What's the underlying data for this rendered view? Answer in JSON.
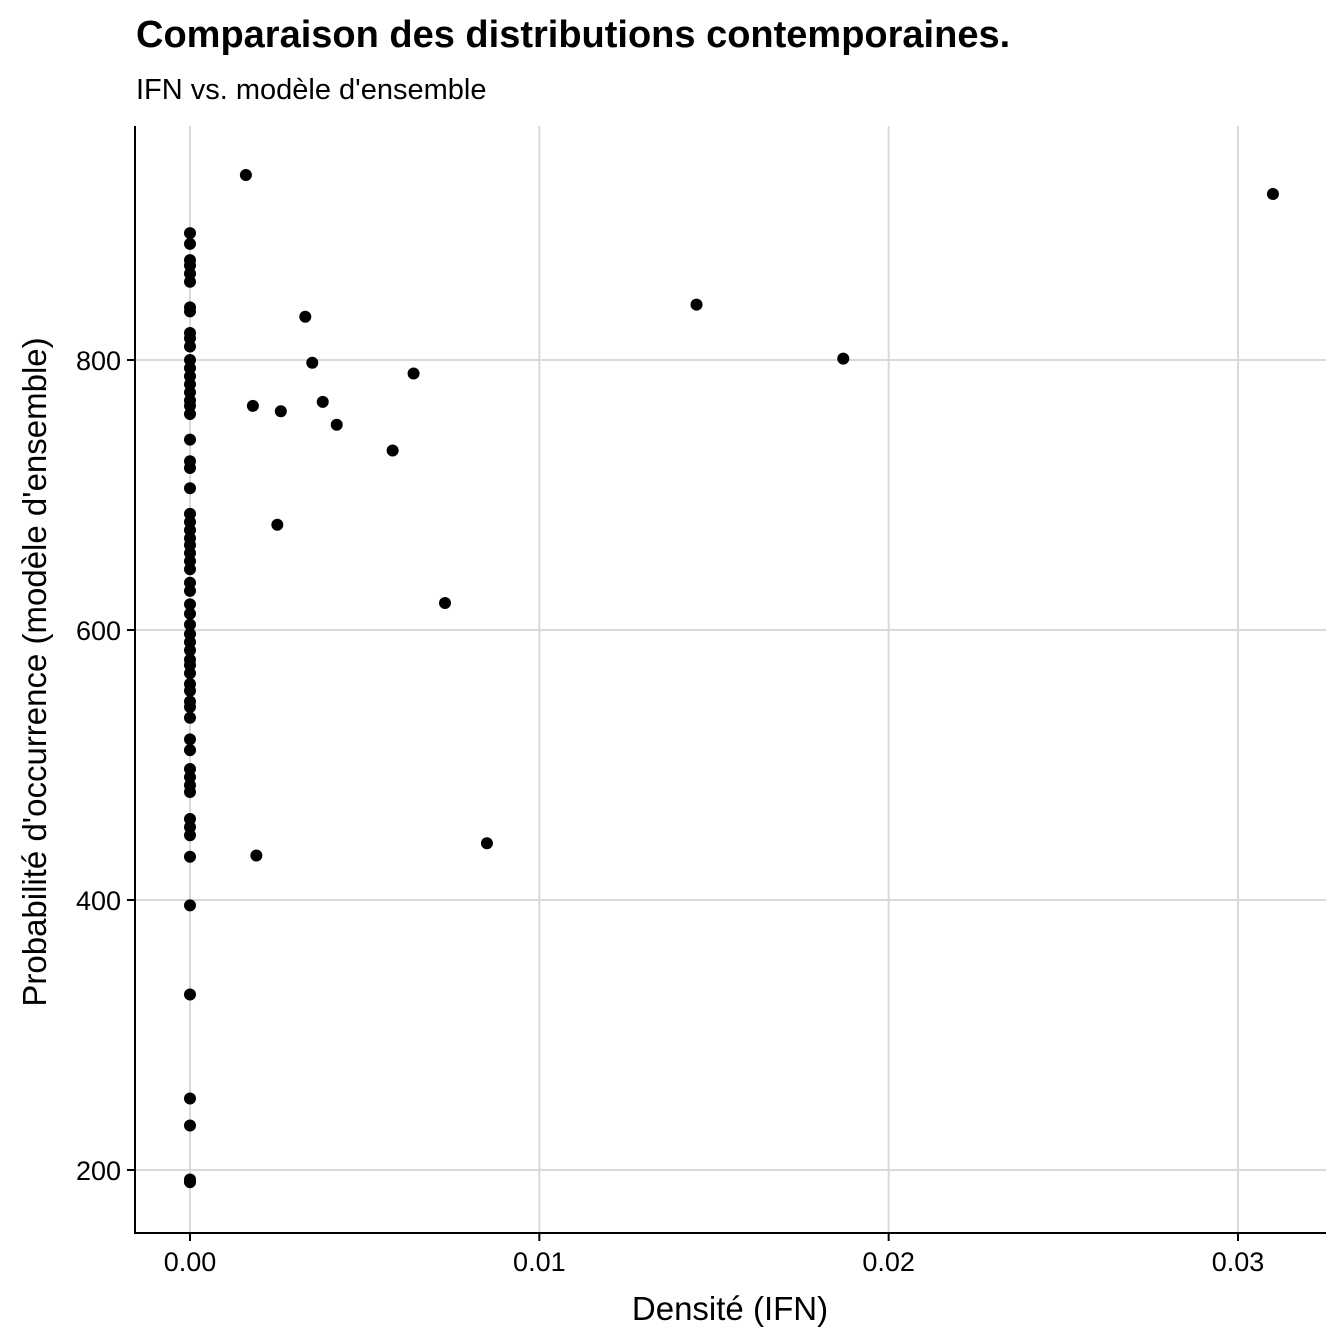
{
  "chart_data": {
    "type": "scatter",
    "title": "Comparaison des distributions contemporaines.",
    "subtitle": "IFN vs. modèle d'ensemble",
    "xlabel": "Densité (IFN)",
    "ylabel": "Probabilité d'occurrence (modèle d'ensemble)",
    "xlim": [
      -0.0016,
      0.0325
    ],
    "ylim": [
      152,
      937
    ],
    "x_ticks": [
      0.0,
      0.01,
      0.02,
      0.03
    ],
    "x_tick_labels": [
      "0.00",
      "0.01",
      "0.02",
      "0.03"
    ],
    "y_ticks": [
      200,
      400,
      600,
      800
    ],
    "y_tick_labels": [
      "200",
      "400",
      "600",
      "800"
    ],
    "grid": true,
    "marker_color": "#000000",
    "grid_color": "#d9d9d9",
    "points": [
      {
        "x": 0.0,
        "y": 894
      },
      {
        "x": 0.0,
        "y": 886
      },
      {
        "x": 0.0,
        "y": 874
      },
      {
        "x": 0.0,
        "y": 870
      },
      {
        "x": 0.0,
        "y": 864
      },
      {
        "x": 0.0,
        "y": 858
      },
      {
        "x": 0.0,
        "y": 839
      },
      {
        "x": 0.0,
        "y": 836
      },
      {
        "x": 0.0,
        "y": 820
      },
      {
        "x": 0.0,
        "y": 816
      },
      {
        "x": 0.0,
        "y": 810
      },
      {
        "x": 0.0,
        "y": 800
      },
      {
        "x": 0.0,
        "y": 794
      },
      {
        "x": 0.0,
        "y": 788
      },
      {
        "x": 0.0,
        "y": 782
      },
      {
        "x": 0.0,
        "y": 776
      },
      {
        "x": 0.0,
        "y": 770
      },
      {
        "x": 0.0,
        "y": 766
      },
      {
        "x": 0.0,
        "y": 760
      },
      {
        "x": 0.0,
        "y": 741
      },
      {
        "x": 0.0,
        "y": 725
      },
      {
        "x": 0.0,
        "y": 720
      },
      {
        "x": 0.0,
        "y": 705
      },
      {
        "x": 0.0,
        "y": 686
      },
      {
        "x": 0.0,
        "y": 680
      },
      {
        "x": 0.0,
        "y": 674
      },
      {
        "x": 0.0,
        "y": 668
      },
      {
        "x": 0.0,
        "y": 663
      },
      {
        "x": 0.0,
        "y": 657
      },
      {
        "x": 0.0,
        "y": 651
      },
      {
        "x": 0.0,
        "y": 645
      },
      {
        "x": 0.0,
        "y": 635
      },
      {
        "x": 0.0,
        "y": 629
      },
      {
        "x": 0.0,
        "y": 619
      },
      {
        "x": 0.0,
        "y": 612
      },
      {
        "x": 0.0,
        "y": 604
      },
      {
        "x": 0.0,
        "y": 597
      },
      {
        "x": 0.0,
        "y": 591
      },
      {
        "x": 0.0,
        "y": 585
      },
      {
        "x": 0.0,
        "y": 578
      },
      {
        "x": 0.0,
        "y": 574
      },
      {
        "x": 0.0,
        "y": 568
      },
      {
        "x": 0.0,
        "y": 560
      },
      {
        "x": 0.0,
        "y": 555
      },
      {
        "x": 0.0,
        "y": 547
      },
      {
        "x": 0.0,
        "y": 543
      },
      {
        "x": 0.0,
        "y": 535
      },
      {
        "x": 0.0,
        "y": 519
      },
      {
        "x": 0.0,
        "y": 511
      },
      {
        "x": 0.0,
        "y": 497
      },
      {
        "x": 0.0,
        "y": 491
      },
      {
        "x": 0.0,
        "y": 485
      },
      {
        "x": 0.0,
        "y": 480
      },
      {
        "x": 0.0,
        "y": 460
      },
      {
        "x": 0.0,
        "y": 454
      },
      {
        "x": 0.0,
        "y": 448
      },
      {
        "x": 0.0,
        "y": 432
      },
      {
        "x": 0.0,
        "y": 396
      },
      {
        "x": 0.0,
        "y": 330
      },
      {
        "x": 0.0,
        "y": 253
      },
      {
        "x": 0.0,
        "y": 233
      },
      {
        "x": 0.0,
        "y": 193
      },
      {
        "x": 0.0,
        "y": 191
      },
      {
        "x": 0.0016,
        "y": 937
      },
      {
        "x": 0.0018,
        "y": 766
      },
      {
        "x": 0.0019,
        "y": 433
      },
      {
        "x": 0.0025,
        "y": 678
      },
      {
        "x": 0.0026,
        "y": 762
      },
      {
        "x": 0.0033,
        "y": 832
      },
      {
        "x": 0.0035,
        "y": 798
      },
      {
        "x": 0.0038,
        "y": 769
      },
      {
        "x": 0.0042,
        "y": 752
      },
      {
        "x": 0.0058,
        "y": 733
      },
      {
        "x": 0.0064,
        "y": 790
      },
      {
        "x": 0.0073,
        "y": 620
      },
      {
        "x": 0.0085,
        "y": 442
      },
      {
        "x": 0.0145,
        "y": 841
      },
      {
        "x": 0.0187,
        "y": 801
      },
      {
        "x": 0.031,
        "y": 923
      }
    ]
  }
}
